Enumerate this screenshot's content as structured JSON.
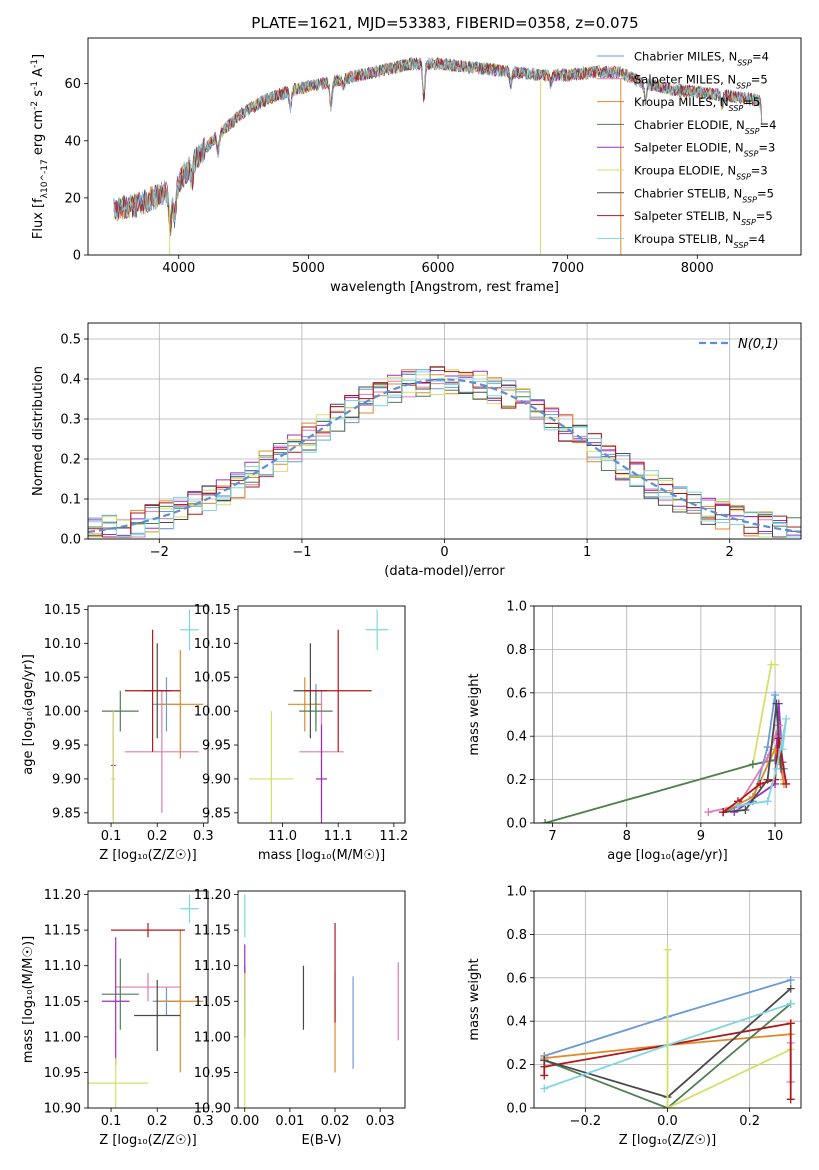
{
  "figure": {
    "title": "PLATE=1621, MJD=53383, FIBERID=0358, z=0.075"
  },
  "colors": {
    "chabrier_miles": "#6a9bd8",
    "salpeter_miles": "#e07bb5",
    "kroupa_miles": "#e08a2a",
    "chabrier_elodie": "#4f7f52",
    "salpeter_elodie": "#9b30c8",
    "kroupa_elodie": "#d5e06a",
    "chabrier_stelib": "#4a4a4a",
    "salpeter_stelib": "#b01818",
    "kroupa_stelib": "#7fd6e0",
    "normal": "#5b8fd6"
  },
  "chart_data": [
    {
      "type": "line",
      "id": "spectrum",
      "title": "PLATE=1621, MJD=53383, FIBERID=0358, z=0.075",
      "xlabel": "wavelength [Angstrom, rest frame]",
      "ylabel": "Flux [f_λ10^-17 erg cm^-2 s^-1 A^-1]",
      "xlim": [
        3300,
        8800
      ],
      "ylim": [
        0,
        76
      ],
      "xticks": [
        4000,
        5000,
        6000,
        7000,
        8000
      ],
      "yticks": [
        0,
        20,
        40,
        60
      ],
      "legend_position": "upper-right",
      "continuum_knots": [
        [
          3500,
          16
        ],
        [
          3700,
          18
        ],
        [
          3900,
          22
        ],
        [
          3950,
          18
        ],
        [
          4000,
          25
        ],
        [
          4100,
          32
        ],
        [
          4300,
          42
        ],
        [
          4500,
          50
        ],
        [
          4700,
          55
        ],
        [
          4900,
          58
        ],
        [
          5100,
          60
        ],
        [
          5300,
          62
        ],
        [
          5500,
          64
        ],
        [
          5800,
          67
        ],
        [
          6000,
          67
        ],
        [
          6200,
          66
        ],
        [
          6400,
          65
        ],
        [
          6600,
          64
        ],
        [
          6800,
          63
        ],
        [
          7000,
          63
        ],
        [
          7200,
          64
        ],
        [
          7400,
          64
        ],
        [
          7600,
          60
        ],
        [
          7800,
          58
        ],
        [
          8000,
          57
        ],
        [
          8200,
          56
        ],
        [
          8350,
          55
        ],
        [
          8500,
          54
        ]
      ],
      "absorption_features": [
        [
          3934,
          9
        ],
        [
          3969,
          8
        ],
        [
          4102,
          6
        ],
        [
          4304,
          6
        ],
        [
          4861,
          6
        ],
        [
          5175,
          9
        ],
        [
          5270,
          3
        ],
        [
          5890,
          12
        ],
        [
          6563,
          4
        ],
        [
          6870,
          3
        ],
        [
          7600,
          6
        ],
        [
          8190,
          4
        ],
        [
          8500,
          6
        ]
      ],
      "drop_lines": [
        {
          "x": 3930,
          "series": 5
        },
        {
          "x": 6790,
          "series": 5
        },
        {
          "x": 7410,
          "series": 2
        }
      ],
      "series": [
        {
          "name": "Chabrier MILES, N_SSP=4",
          "color_key": "chabrier_miles"
        },
        {
          "name": "Salpeter MILES, N_SSP=5",
          "color_key": "salpeter_miles"
        },
        {
          "name": "Kroupa MILES, N_SSP=5",
          "color_key": "kroupa_miles"
        },
        {
          "name": "Chabrier ELODIE, N_SSP=4",
          "color_key": "chabrier_elodie"
        },
        {
          "name": "Salpeter ELODIE, N_SSP=3",
          "color_key": "salpeter_elodie"
        },
        {
          "name": "Kroupa ELODIE, N_SSP=3",
          "color_key": "kroupa_elodie"
        },
        {
          "name": "Chabrier STELIB, N_SSP=5",
          "color_key": "chabrier_stelib"
        },
        {
          "name": "Salpeter STELIB, N_SSP=5",
          "color_key": "salpeter_stelib"
        },
        {
          "name": "Kroupa STELIB, N_SSP=4",
          "color_key": "kroupa_stelib"
        }
      ]
    },
    {
      "type": "bar",
      "id": "residuals",
      "xlabel": "(data-model)/error",
      "ylabel": "Normed distribution",
      "xlim": [
        -2.5,
        2.5
      ],
      "ylim": [
        0,
        0.54
      ],
      "xticks": [
        -2,
        -1,
        0,
        1,
        2
      ],
      "yticks": [
        0.0,
        0.1,
        0.2,
        0.3,
        0.4,
        0.5
      ],
      "grid": true,
      "bin_width": 0.1,
      "legend_entry": "N(0,1)",
      "legend_position": "upper-right"
    },
    {
      "type": "scatter",
      "id": "age_vs_Z",
      "xlabel": "Z [log10(Z/Z☉)]",
      "ylabel": "age  [log10(age/yr)]",
      "xlim": [
        0.05,
        0.31
      ],
      "ylim": [
        9.835,
        10.155
      ],
      "xticks": [
        0.1,
        0.2,
        0.3
      ],
      "yticks": [
        9.85,
        9.9,
        9.95,
        10.0,
        10.05,
        10.1,
        10.15
      ],
      "points": [
        {
          "series": "chabrier_miles",
          "x": 0.22,
          "y": 10.01,
          "xerr": 0.03,
          "yerr": 0.04
        },
        {
          "series": "salpeter_miles",
          "x": 0.21,
          "y": 9.94,
          "xerr": 0.08,
          "yerr": 0.09
        },
        {
          "series": "kroupa_miles",
          "x": 0.25,
          "y": 10.01,
          "xerr": 0.05,
          "yerr": 0.08
        },
        {
          "series": "chabrier_elodie",
          "x": 0.12,
          "y": 10.0,
          "xerr": 0.04,
          "yerr": 0.03
        },
        {
          "series": "salpeter_elodie",
          "x": 0.105,
          "y": 9.92,
          "xerr": 0.005,
          "yerr": 0.08
        },
        {
          "series": "kroupa_elodie",
          "x": 0.105,
          "y": 9.9,
          "xerr": 0.005,
          "yerr": 0.1
        },
        {
          "series": "chabrier_stelib",
          "x": 0.2,
          "y": 10.03,
          "xerr": 0.03,
          "yerr": 0.07
        },
        {
          "series": "salpeter_stelib",
          "x": 0.19,
          "y": 10.03,
          "xerr": 0.06,
          "yerr": 0.09
        },
        {
          "series": "kroupa_stelib",
          "x": 0.27,
          "y": 10.12,
          "xerr": 0.02,
          "yerr": 0.03
        }
      ]
    },
    {
      "type": "scatter",
      "id": "age_vs_mass",
      "xlabel": "mass [log10(M/M☉)]",
      "ylabel": "",
      "xlim": [
        10.92,
        11.22
      ],
      "ylim": [
        9.835,
        10.155
      ],
      "xticks": [
        11.0,
        11.1,
        11.2
      ],
      "yticks": [
        9.85,
        9.9,
        9.95,
        10.0,
        10.05,
        10.1,
        10.15
      ],
      "points": [
        {
          "series": "chabrier_miles",
          "x": 11.06,
          "y": 10.01,
          "xerr": 0.01,
          "yerr": 0.03
        },
        {
          "series": "salpeter_miles",
          "x": 11.07,
          "y": 9.94,
          "xerr": 0.04,
          "yerr": 0.09
        },
        {
          "series": "kroupa_miles",
          "x": 11.04,
          "y": 10.01,
          "xerr": 0.03,
          "yerr": 0.04
        },
        {
          "series": "chabrier_elodie",
          "x": 11.06,
          "y": 10.0,
          "xerr": 0.03,
          "yerr": 0.03
        },
        {
          "series": "salpeter_elodie",
          "x": 11.07,
          "y": 9.9,
          "xerr": 0.01,
          "yerr": 0.08
        },
        {
          "series": "kroupa_elodie",
          "x": 10.98,
          "y": 9.9,
          "xerr": 0.04,
          "yerr": 0.1
        },
        {
          "series": "chabrier_stelib",
          "x": 11.05,
          "y": 10.03,
          "xerr": 0.03,
          "yerr": 0.07
        },
        {
          "series": "salpeter_stelib",
          "x": 11.1,
          "y": 10.03,
          "xerr": 0.06,
          "yerr": 0.09
        },
        {
          "series": "kroupa_stelib",
          "x": 11.17,
          "y": 10.12,
          "xerr": 0.02,
          "yerr": 0.03
        }
      ]
    },
    {
      "type": "line",
      "id": "weight_vs_age",
      "xlabel": "age  [log10(age/yr)]",
      "ylabel": "mass weight",
      "xlim": [
        6.75,
        10.35
      ],
      "ylim": [
        0,
        1.0
      ],
      "xticks": [
        7,
        8,
        9,
        10
      ],
      "yticks": [
        0.0,
        0.2,
        0.4,
        0.6,
        0.8,
        1.0
      ],
      "grid": true,
      "series": [
        {
          "series": "kroupa_elodie",
          "x": [
            6.9,
            9.7,
            9.95,
            10.0
          ],
          "y": [
            0.0,
            0.27,
            0.73,
            0.73
          ]
        },
        {
          "series": "chabrier_elodie",
          "x": [
            6.9,
            9.7,
            10.0,
            10.05
          ],
          "y": [
            0.0,
            0.27,
            0.29,
            0.45
          ]
        },
        {
          "series": "salpeter_elodie",
          "x": [
            9.45,
            10.0,
            10.05,
            10.1
          ],
          "y": [
            0.05,
            0.18,
            0.55,
            0.28
          ]
        },
        {
          "series": "chabrier_miles",
          "x": [
            9.3,
            9.7,
            9.9,
            10.0,
            10.05,
            10.12
          ],
          "y": [
            0.05,
            0.1,
            0.35,
            0.59,
            0.4,
            0.25
          ]
        },
        {
          "series": "salpeter_miles",
          "x": [
            9.1,
            9.5,
            9.9,
            10.05,
            10.12
          ],
          "y": [
            0.05,
            0.08,
            0.3,
            0.45,
            0.2
          ]
        },
        {
          "series": "kroupa_miles",
          "x": [
            9.3,
            9.7,
            10.0,
            10.07,
            10.12
          ],
          "y": [
            0.05,
            0.12,
            0.34,
            0.27,
            0.18
          ]
        },
        {
          "series": "chabrier_stelib",
          "x": [
            9.3,
            9.6,
            9.9,
            10.02,
            10.08
          ],
          "y": [
            0.05,
            0.06,
            0.2,
            0.55,
            0.25
          ]
        },
        {
          "series": "salpeter_stelib",
          "x": [
            9.3,
            9.5,
            9.8,
            10.0,
            10.05,
            10.15
          ],
          "y": [
            0.05,
            0.1,
            0.18,
            0.2,
            0.39,
            0.18
          ]
        },
        {
          "series": "kroupa_stelib",
          "x": [
            9.5,
            9.9,
            10.02,
            10.15,
            10.1
          ],
          "y": [
            0.08,
            0.1,
            0.25,
            0.48,
            0.34
          ]
        }
      ]
    },
    {
      "type": "scatter",
      "id": "mass_vs_Z",
      "xlabel": "Z [log10(Z/Z☉)]",
      "ylabel": "mass [log10(M/M☉)]",
      "xlim": [
        0.05,
        0.31
      ],
      "ylim": [
        10.9,
        11.205
      ],
      "xticks": [
        0.1,
        0.2,
        0.3
      ],
      "yticks": [
        10.9,
        10.95,
        11.0,
        11.05,
        11.1,
        11.15,
        11.2
      ],
      "points": [
        {
          "series": "chabrier_miles",
          "x": 0.22,
          "y": 11.05,
          "xerr": 0.03,
          "yerr": 0.02
        },
        {
          "series": "salpeter_miles",
          "x": 0.18,
          "y": 11.07,
          "xerr": 0.07,
          "yerr": 0.02
        },
        {
          "series": "kroupa_miles",
          "x": 0.25,
          "y": 11.05,
          "xerr": 0.05,
          "yerr": 0.1
        },
        {
          "series": "chabrier_elodie",
          "x": 0.12,
          "y": 11.06,
          "xerr": 0.04,
          "yerr": 0.05
        },
        {
          "series": "salpeter_elodie",
          "x": 0.11,
          "y": 11.05,
          "xerr": 0.03,
          "yerr": 0.09
        },
        {
          "series": "kroupa_elodie",
          "x": 0.11,
          "y": 10.935,
          "xerr": 0.07,
          "yerr": 0.035
        },
        {
          "series": "chabrier_stelib",
          "x": 0.2,
          "y": 11.03,
          "xerr": 0.05,
          "yerr": 0.05
        },
        {
          "series": "salpeter_stelib",
          "x": 0.18,
          "y": 11.15,
          "xerr": 0.08,
          "yerr": 0.01
        },
        {
          "series": "kroupa_stelib",
          "x": 0.27,
          "y": 11.18,
          "xerr": 0.02,
          "yerr": 0.02
        }
      ]
    },
    {
      "type": "scatter",
      "id": "mass_vs_ebv",
      "xlabel": "E(B-V)",
      "ylabel": "",
      "xlim": [
        -0.0015,
        0.0355
      ],
      "ylim": [
        10.9,
        11.205
      ],
      "xticks": [
        0.0,
        0.01,
        0.02,
        0.03
      ],
      "yticks": [
        10.9,
        10.95,
        11.0,
        11.05,
        11.1,
        11.15,
        11.2
      ],
      "points": [
        {
          "series": "chabrier_miles",
          "x": 0.024,
          "y": 11.02,
          "xerr": 0,
          "yerr": 0.065
        },
        {
          "series": "salpeter_miles",
          "x": 0.034,
          "y": 11.05,
          "xerr": 0,
          "yerr": 0.055
        },
        {
          "series": "kroupa_miles",
          "x": 0.02,
          "y": 11.02,
          "xerr": 0,
          "yerr": 0.07
        },
        {
          "series": "chabrier_elodie",
          "x": 0.0,
          "y": 11.05,
          "xerr": 0,
          "yerr": 0.05
        },
        {
          "series": "salpeter_elodie",
          "x": 0.0,
          "y": 11.09,
          "xerr": 0,
          "yerr": 0.04
        },
        {
          "series": "kroupa_elodie",
          "x": 0.0,
          "y": 10.99,
          "xerr": 0,
          "yerr": 0.1
        },
        {
          "series": "chabrier_stelib",
          "x": 0.013,
          "y": 11.055,
          "xerr": 0,
          "yerr": 0.045
        },
        {
          "series": "salpeter_stelib",
          "x": 0.02,
          "y": 11.09,
          "xerr": 0,
          "yerr": 0.07
        },
        {
          "series": "kroupa_stelib",
          "x": 0.0,
          "y": 11.17,
          "xerr": 0,
          "yerr": 0.03
        }
      ]
    },
    {
      "type": "line",
      "id": "weight_vs_Z",
      "xlabel": "Z [log10(Z/Z☉)]",
      "ylabel": "mass weight",
      "xlim": [
        -0.325,
        0.325
      ],
      "ylim": [
        0,
        1.0
      ],
      "xticks": [
        -0.2,
        0.0,
        0.2
      ],
      "yticks": [
        0.0,
        0.2,
        0.4,
        0.6,
        0.8,
        1.0
      ],
      "grid": true,
      "series": [
        {
          "series": "chabrier_miles",
          "x": [
            -0.3,
            0.0,
            0.3
          ],
          "y": [
            0.24,
            0.42,
            0.59
          ]
        },
        {
          "series": "kroupa_miles",
          "x": [
            -0.3,
            0.0,
            0.3
          ],
          "y": [
            0.23,
            0.29,
            0.34
          ]
        },
        {
          "series": "chabrier_elodie",
          "x": [
            -0.3,
            0.0,
            0.3
          ],
          "y": [
            0.22,
            0.0,
            0.48
          ]
        },
        {
          "series": "salpeter_stelib",
          "x": [
            -0.3,
            0.0,
            0.3
          ],
          "y": [
            0.19,
            0.29,
            0.39
          ]
        },
        {
          "series": "salpeter_stelib",
          "x": [
            -0.3,
            -0.3
          ],
          "y": [
            0.15,
            0.22
          ]
        },
        {
          "series": "chabrier_stelib",
          "x": [
            -0.3,
            0.0,
            0.3
          ],
          "y": [
            0.22,
            0.05,
            0.55
          ]
        },
        {
          "series": "kroupa_stelib",
          "x": [
            -0.3,
            0.0,
            0.3
          ],
          "y": [
            0.09,
            0.29,
            0.48
          ]
        },
        {
          "series": "kroupa_elodie",
          "x": [
            0.0,
            0.0,
            0.3
          ],
          "y": [
            0.73,
            0.0,
            0.27
          ]
        },
        {
          "series": "salpeter_miles",
          "x": [
            0.3,
            0.3
          ],
          "y": [
            0.12,
            0.3
          ]
        },
        {
          "series": "salpeter_stelib",
          "x": [
            0.3,
            0.3
          ],
          "y": [
            0.04,
            0.39
          ]
        }
      ]
    }
  ]
}
